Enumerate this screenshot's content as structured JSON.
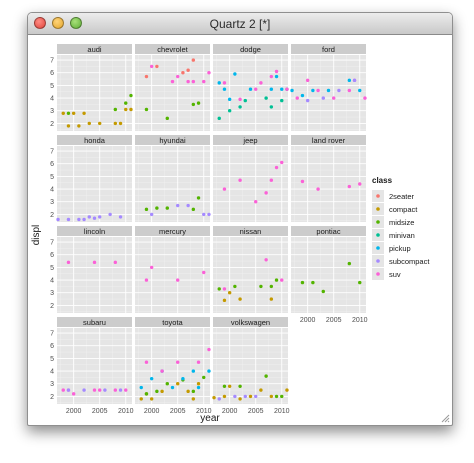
{
  "window": {
    "title": "Quartz 2 [*]"
  },
  "colors": {
    "panel_bg": "#e5e5e5",
    "strip_bg": "#cccccc",
    "grid_major": "#ffffff",
    "grid_minor": "#f2f2f2",
    "text": "#1a1a1a",
    "axis_text": "#4d4d4d"
  },
  "chart_data": {
    "type": "scatter",
    "facet_by": "manufacturer",
    "xlabel": "year",
    "ylabel": "displ",
    "x_ticks": [
      2000,
      2005,
      2010
    ],
    "y_ticks": [
      2,
      3,
      4,
      5,
      6,
      7
    ],
    "xlim": [
      1996.8,
      2011.2
    ],
    "ylim": [
      1.4,
      7.4
    ],
    "grid": true,
    "legend": {
      "title": "class",
      "position": "right",
      "entries": [
        {
          "name": "2seater",
          "color": "#f8766d"
        },
        {
          "name": "compact",
          "color": "#c49a00"
        },
        {
          "name": "midsize",
          "color": "#53b400"
        },
        {
          "name": "minivan",
          "color": "#00c094"
        },
        {
          "name": "pickup",
          "color": "#00b6eb"
        },
        {
          "name": "subcompact",
          "color": "#a58aff"
        },
        {
          "name": "suv",
          "color": "#fb61d7"
        }
      ]
    },
    "facets": [
      {
        "label": "audi",
        "points": [
          [
            1999,
            1.8,
            "compact"
          ],
          [
            2001,
            1.8,
            "compact"
          ],
          [
            2003,
            2.0,
            "compact"
          ],
          [
            2005,
            2.0,
            "compact"
          ],
          [
            2000,
            2.8,
            "compact"
          ],
          [
            2002,
            2.8,
            "compact"
          ],
          [
            1998,
            2.8,
            "compact"
          ],
          [
            2008,
            2.0,
            "compact"
          ],
          [
            2009,
            2.0,
            "compact"
          ],
          [
            2010,
            3.1,
            "compact"
          ],
          [
            2011,
            3.1,
            "compact"
          ],
          [
            2008,
            3.1,
            "midsize"
          ],
          [
            2010,
            3.6,
            "midsize"
          ],
          [
            2011,
            4.2,
            "midsize"
          ],
          [
            1999,
            2.8,
            "midsize"
          ]
        ]
      },
      {
        "label": "chevrolet",
        "points": [
          [
            1999,
            5.7,
            "2seater"
          ],
          [
            2001,
            6.5,
            "2seater"
          ],
          [
            2007,
            6.2,
            "2seater"
          ],
          [
            2008,
            7.0,
            "2seater"
          ],
          [
            2006,
            6.0,
            "2seater"
          ],
          [
            1999,
            3.1,
            "midsize"
          ],
          [
            2003,
            2.4,
            "midsize"
          ],
          [
            2008,
            3.5,
            "midsize"
          ],
          [
            2009,
            3.6,
            "midsize"
          ],
          [
            2000,
            6.5,
            "suv"
          ],
          [
            2004,
            5.3,
            "suv"
          ],
          [
            2005,
            5.7,
            "suv"
          ],
          [
            2008,
            5.3,
            "suv"
          ],
          [
            2010,
            5.3,
            "suv"
          ],
          [
            2011,
            6.0,
            "suv"
          ],
          [
            2007,
            5.3,
            "suv"
          ]
        ]
      },
      {
        "label": "dodge",
        "points": [
          [
            1998,
            5.2,
            "pickup"
          ],
          [
            1999,
            4.7,
            "pickup"
          ],
          [
            2000,
            3.9,
            "pickup"
          ],
          [
            2001,
            5.9,
            "pickup"
          ],
          [
            2004,
            4.7,
            "pickup"
          ],
          [
            2008,
            4.7,
            "pickup"
          ],
          [
            2009,
            5.7,
            "pickup"
          ],
          [
            2010,
            4.7,
            "pickup"
          ],
          [
            1998,
            2.4,
            "minivan"
          ],
          [
            2000,
            3.0,
            "minivan"
          ],
          [
            2002,
            3.3,
            "minivan"
          ],
          [
            2003,
            3.8,
            "minivan"
          ],
          [
            2007,
            4.0,
            "minivan"
          ],
          [
            2008,
            3.3,
            "minivan"
          ],
          [
            2010,
            3.8,
            "minivan"
          ],
          [
            2011,
            4.7,
            "minivan"
          ],
          [
            1999,
            5.2,
            "suv"
          ],
          [
            2002,
            3.9,
            "suv"
          ],
          [
            2005,
            4.7,
            "suv"
          ],
          [
            2006,
            5.2,
            "suv"
          ],
          [
            2008,
            5.7,
            "suv"
          ],
          [
            2009,
            6.1,
            "suv"
          ],
          [
            2011,
            4.7,
            "suv"
          ]
        ]
      },
      {
        "label": "ford",
        "points": [
          [
            1997,
            4.6,
            "pickup"
          ],
          [
            1999,
            4.2,
            "pickup"
          ],
          [
            2001,
            4.6,
            "pickup"
          ],
          [
            2004,
            4.6,
            "pickup"
          ],
          [
            2008,
            5.4,
            "pickup"
          ],
          [
            2010,
            4.6,
            "pickup"
          ],
          [
            1998,
            4.0,
            "suv"
          ],
          [
            2000,
            5.4,
            "suv"
          ],
          [
            2002,
            4.6,
            "suv"
          ],
          [
            2005,
            4.0,
            "suv"
          ],
          [
            2008,
            4.6,
            "suv"
          ],
          [
            2009,
            5.4,
            "suv"
          ],
          [
            2011,
            4.0,
            "suv"
          ],
          [
            2000,
            3.8,
            "subcompact"
          ],
          [
            2003,
            4.0,
            "subcompact"
          ],
          [
            2006,
            4.6,
            "subcompact"
          ],
          [
            2009,
            5.4,
            "subcompact"
          ]
        ]
      },
      {
        "label": "honda",
        "points": [
          [
            1997,
            1.6,
            "subcompact"
          ],
          [
            1999,
            1.6,
            "subcompact"
          ],
          [
            2001,
            1.6,
            "subcompact"
          ],
          [
            2002,
            1.6,
            "subcompact"
          ],
          [
            2003,
            1.8,
            "subcompact"
          ],
          [
            2004,
            1.7,
            "subcompact"
          ],
          [
            2005,
            1.8,
            "subcompact"
          ],
          [
            2007,
            2.0,
            "subcompact"
          ],
          [
            2009,
            1.8,
            "subcompact"
          ]
        ]
      },
      {
        "label": "hyundai",
        "points": [
          [
            1999,
            2.4,
            "midsize"
          ],
          [
            2001,
            2.5,
            "midsize"
          ],
          [
            2003,
            2.5,
            "midsize"
          ],
          [
            2008,
            2.4,
            "midsize"
          ],
          [
            2009,
            3.3,
            "midsize"
          ],
          [
            2000,
            2.0,
            "subcompact"
          ],
          [
            2005,
            2.7,
            "subcompact"
          ],
          [
            2007,
            2.7,
            "subcompact"
          ],
          [
            2010,
            2.0,
            "subcompact"
          ],
          [
            2011,
            2.0,
            "subcompact"
          ]
        ]
      },
      {
        "label": "jeep",
        "points": [
          [
            1999,
            4.0,
            "suv"
          ],
          [
            2002,
            4.7,
            "suv"
          ],
          [
            2005,
            3.0,
            "suv"
          ],
          [
            2007,
            3.7,
            "suv"
          ],
          [
            2008,
            4.7,
            "suv"
          ],
          [
            2009,
            5.7,
            "suv"
          ],
          [
            2010,
            6.1,
            "suv"
          ]
        ]
      },
      {
        "label": "land rover",
        "points": [
          [
            1999,
            4.6,
            "suv"
          ],
          [
            2002,
            4.0,
            "suv"
          ],
          [
            2008,
            4.2,
            "suv"
          ],
          [
            2010,
            4.4,
            "suv"
          ]
        ]
      },
      {
        "label": "lincoln",
        "points": [
          [
            1999,
            5.4,
            "suv"
          ],
          [
            2004,
            5.4,
            "suv"
          ],
          [
            2008,
            5.4,
            "suv"
          ]
        ]
      },
      {
        "label": "mercury",
        "points": [
          [
            1999,
            4.0,
            "suv"
          ],
          [
            2000,
            5.0,
            "suv"
          ],
          [
            2005,
            4.0,
            "suv"
          ],
          [
            2010,
            4.6,
            "suv"
          ]
        ]
      },
      {
        "label": "nissan",
        "points": [
          [
            1999,
            2.4,
            "compact"
          ],
          [
            2000,
            3.0,
            "compact"
          ],
          [
            2002,
            2.5,
            "compact"
          ],
          [
            2008,
            2.5,
            "compact"
          ],
          [
            1998,
            3.3,
            "midsize"
          ],
          [
            2001,
            3.5,
            "midsize"
          ],
          [
            2006,
            3.5,
            "midsize"
          ],
          [
            2008,
            3.5,
            "midsize"
          ],
          [
            2009,
            4.0,
            "midsize"
          ],
          [
            1999,
            3.3,
            "suv"
          ],
          [
            2007,
            5.6,
            "suv"
          ],
          [
            2010,
            4.0,
            "suv"
          ]
        ]
      },
      {
        "label": "pontiac",
        "points": [
          [
            1999,
            3.8,
            "midsize"
          ],
          [
            2001,
            3.8,
            "midsize"
          ],
          [
            2003,
            3.1,
            "midsize"
          ],
          [
            2008,
            5.3,
            "midsize"
          ],
          [
            2010,
            3.8,
            "midsize"
          ]
        ]
      },
      {
        "label": "subaru",
        "points": [
          [
            1998,
            2.5,
            "suv"
          ],
          [
            1999,
            2.5,
            "suv"
          ],
          [
            2000,
            2.2,
            "suv"
          ],
          [
            2004,
            2.5,
            "suv"
          ],
          [
            2005,
            2.5,
            "suv"
          ],
          [
            2008,
            2.5,
            "suv"
          ],
          [
            2010,
            2.5,
            "suv"
          ],
          [
            1999,
            2.5,
            "subcompact"
          ],
          [
            2002,
            2.5,
            "subcompact"
          ],
          [
            2006,
            2.5,
            "subcompact"
          ],
          [
            2009,
            2.5,
            "subcompact"
          ]
        ]
      },
      {
        "label": "toyota",
        "points": [
          [
            1998,
            1.8,
            "compact"
          ],
          [
            1999,
            2.2,
            "compact"
          ],
          [
            2000,
            1.8,
            "compact"
          ],
          [
            2002,
            2.4,
            "compact"
          ],
          [
            2005,
            3.0,
            "compact"
          ],
          [
            2007,
            2.4,
            "compact"
          ],
          [
            2008,
            1.8,
            "compact"
          ],
          [
            2009,
            3.0,
            "compact"
          ],
          [
            1999,
            2.2,
            "midsize"
          ],
          [
            2001,
            2.4,
            "midsize"
          ],
          [
            2003,
            3.0,
            "midsize"
          ],
          [
            2006,
            3.3,
            "midsize"
          ],
          [
            2008,
            2.4,
            "midsize"
          ],
          [
            2010,
            3.5,
            "midsize"
          ],
          [
            1998,
            2.7,
            "pickup"
          ],
          [
            2000,
            3.4,
            "pickup"
          ],
          [
            2002,
            4.0,
            "pickup"
          ],
          [
            2004,
            2.7,
            "pickup"
          ],
          [
            2006,
            3.4,
            "pickup"
          ],
          [
            2008,
            4.0,
            "pickup"
          ],
          [
            2009,
            2.7,
            "pickup"
          ],
          [
            2011,
            4.0,
            "pickup"
          ],
          [
            1999,
            4.7,
            "suv"
          ],
          [
            2002,
            4.0,
            "suv"
          ],
          [
            2005,
            4.7,
            "suv"
          ],
          [
            2009,
            4.7,
            "suv"
          ],
          [
            2011,
            5.7,
            "suv"
          ]
        ]
      },
      {
        "label": "volkswagen",
        "points": [
          [
            1997,
            1.9,
            "compact"
          ],
          [
            1999,
            2.0,
            "compact"
          ],
          [
            2000,
            2.8,
            "compact"
          ],
          [
            2002,
            1.8,
            "compact"
          ],
          [
            2004,
            2.0,
            "compact"
          ],
          [
            2006,
            2.5,
            "compact"
          ],
          [
            2008,
            2.0,
            "compact"
          ],
          [
            2011,
            2.5,
            "compact"
          ],
          [
            1998,
            1.8,
            "subcompact"
          ],
          [
            2001,
            2.0,
            "subcompact"
          ],
          [
            2003,
            2.0,
            "subcompact"
          ],
          [
            2005,
            2.0,
            "subcompact"
          ],
          [
            1999,
            2.8,
            "midsize"
          ],
          [
            2002,
            2.8,
            "midsize"
          ],
          [
            2007,
            3.6,
            "midsize"
          ],
          [
            2009,
            2.0,
            "midsize"
          ],
          [
            2010,
            2.0,
            "midsize"
          ]
        ]
      }
    ]
  }
}
